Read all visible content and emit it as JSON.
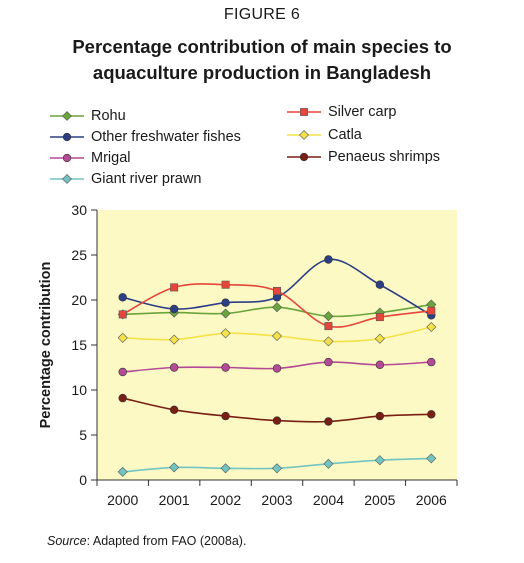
{
  "figure_label": "FIGURE 6",
  "chart_data": {
    "type": "line",
    "title": "Percentage contribution of main species to aquaculture production in Bangladesh",
    "ylabel": "Percentage contribution",
    "xlabel": "",
    "x": [
      "2000",
      "2001",
      "2002",
      "2003",
      "2004",
      "2005",
      "2006"
    ],
    "ylim": [
      0,
      30
    ],
    "yticks": [
      0,
      5,
      10,
      15,
      20,
      25,
      30
    ],
    "legend_position": "top",
    "plot_background": "#fdf9c4",
    "series": [
      {
        "name": "Rohu",
        "color": "#6aa43c",
        "marker": "diamond",
        "values": [
          18.4,
          18.6,
          18.5,
          19.2,
          18.2,
          18.6,
          19.5
        ]
      },
      {
        "name": "Other freshwater fishes",
        "color": "#2b3f86",
        "marker": "circle",
        "values": [
          20.3,
          19.0,
          19.7,
          20.3,
          24.5,
          21.7,
          18.3
        ]
      },
      {
        "name": "Mrigal",
        "color": "#b44a97",
        "marker": "circle",
        "values": [
          12.0,
          12.5,
          12.5,
          12.4,
          13.1,
          12.8,
          13.1
        ]
      },
      {
        "name": "Giant river prawn",
        "color": "#72c4c3",
        "marker": "diamond",
        "values": [
          0.9,
          1.4,
          1.3,
          1.3,
          1.8,
          2.2,
          2.4
        ]
      },
      {
        "name": "Silver carp",
        "color": "#e6453a",
        "marker": "square",
        "values": [
          18.4,
          21.4,
          21.7,
          21.0,
          17.1,
          18.1,
          18.8
        ]
      },
      {
        "name": "Catla",
        "color": "#f4e14a",
        "marker": "diamond",
        "values": [
          15.8,
          15.6,
          16.3,
          16.0,
          15.4,
          15.7,
          17.0
        ]
      },
      {
        "name": "Penaeus shrimps",
        "color": "#7a1f14",
        "marker": "circle",
        "values": [
          9.1,
          7.8,
          7.1,
          6.6,
          6.5,
          7.1,
          7.3
        ]
      }
    ]
  },
  "source": {
    "prefix": "Source",
    "text": ": Adapted from FAO (2008a)."
  }
}
